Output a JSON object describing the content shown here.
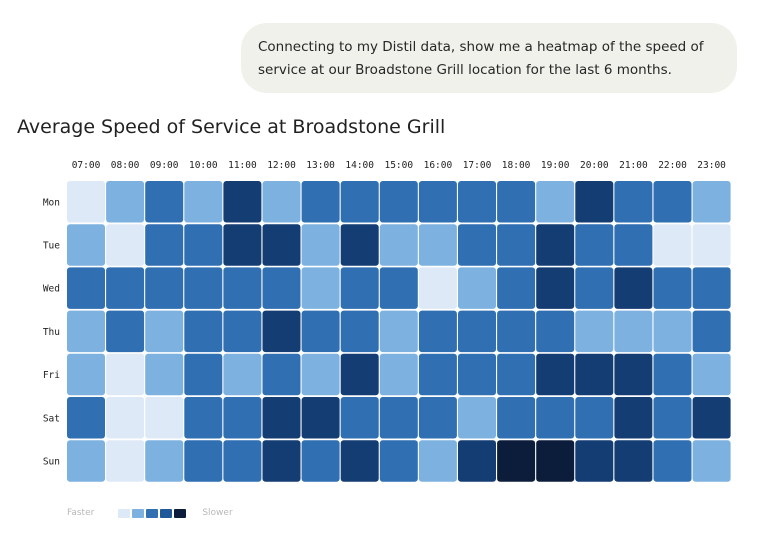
{
  "prompt": {
    "text": "Connecting to my Distil data, show me a heatmap of the speed of service at our Broadstone Grill location for the last 6 months."
  },
  "chart_data": {
    "type": "heatmap",
    "title": "Average Speed of Service at Broadstone Grill",
    "x": [
      "07:00",
      "08:00",
      "09:00",
      "10:00",
      "11:00",
      "12:00",
      "13:00",
      "14:00",
      "15:00",
      "16:00",
      "17:00",
      "18:00",
      "19:00",
      "20:00",
      "21:00",
      "22:00",
      "23:00"
    ],
    "y": [
      "Mon",
      "Tue",
      "Wed",
      "Thu",
      "Fri",
      "Sat",
      "Sun"
    ],
    "levels": [
      1,
      2,
      3,
      4,
      5,
      6
    ],
    "values": [
      [
        1,
        2,
        3,
        2,
        5,
        2,
        3,
        3,
        3,
        3,
        3,
        3,
        2,
        5,
        3,
        3,
        2
      ],
      [
        2,
        1,
        3,
        3,
        5,
        5,
        2,
        5,
        2,
        2,
        3,
        3,
        5,
        3,
        3,
        1,
        1
      ],
      [
        3,
        3,
        3,
        3,
        3,
        3,
        2,
        3,
        3,
        1,
        2,
        3,
        5,
        3,
        5,
        3,
        3
      ],
      [
        2,
        3,
        2,
        3,
        3,
        5,
        3,
        3,
        2,
        3,
        3,
        3,
        3,
        2,
        2,
        2,
        3
      ],
      [
        2,
        1,
        2,
        3,
        2,
        3,
        2,
        5,
        2,
        3,
        3,
        3,
        5,
        5,
        5,
        3,
        2
      ],
      [
        3,
        1,
        1,
        3,
        3,
        5,
        5,
        3,
        3,
        3,
        2,
        3,
        3,
        3,
        5,
        3,
        5
      ],
      [
        2,
        1,
        2,
        3,
        3,
        5,
        3,
        5,
        3,
        2,
        5,
        6,
        6,
        5,
        5,
        3,
        2
      ]
    ],
    "colors": [
      "#dde9f6",
      "#7db2e0",
      "#2f6fb2",
      "#1f5799",
      "#143d73",
      "#0c1d3b"
    ],
    "legend": {
      "low_label": "Faster",
      "high_label": "Slower",
      "colors": [
        "#dde9f6",
        "#7db2e0",
        "#2f6fb2",
        "#1f5799",
        "#0c1d3b"
      ]
    }
  }
}
